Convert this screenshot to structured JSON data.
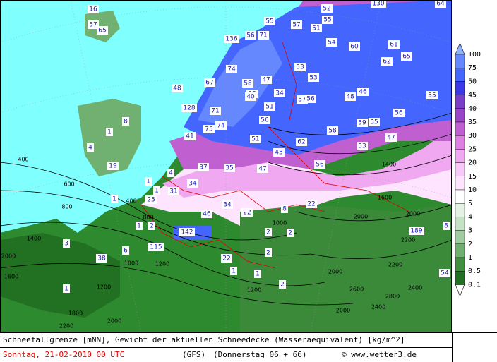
{
  "map": {
    "snow_labels": [
      16,
      57,
      65,
      130,
      64,
      52,
      55,
      57,
      51,
      55,
      56,
      71,
      136,
      54,
      60,
      61,
      62,
      65,
      74,
      53,
      53,
      48,
      67,
      58,
      47,
      38,
      34,
      57,
      56,
      48,
      46,
      55,
      56,
      128,
      71,
      40,
      51,
      56,
      58,
      59,
      55,
      47,
      75,
      74,
      41,
      51,
      62,
      53,
      45,
      56,
      37,
      35,
      47,
      8,
      1,
      4,
      19,
      1,
      1,
      4,
      31,
      34,
      25,
      46,
      34,
      22,
      8,
      22,
      1,
      1,
      2,
      142,
      115,
      3,
      38,
      6,
      22,
      2,
      2,
      2,
      1,
      1,
      2,
      1,
      189,
      8,
      54
    ],
    "contour_labels": [
      400,
      600,
      800,
      1400,
      2000,
      1600,
      1000,
      1200,
      1800,
      2000,
      2200,
      1200,
      400,
      800,
      1400,
      1600,
      2000,
      1000,
      2000,
      2200,
      2200,
      2400,
      2400,
      2600,
      2000,
      2800,
      1200,
      2000
    ]
  },
  "legend": {
    "values": [
      100,
      75,
      50,
      45,
      40,
      35,
      30,
      25,
      20,
      15,
      10,
      5,
      4,
      3,
      2,
      1,
      0.5,
      0.1
    ],
    "colors": [
      "#8cb4ff",
      "#6688ff",
      "#4466ff",
      "#3a3ae8",
      "#7a3ec8",
      "#9a44c8",
      "#c060d0",
      "#e080e0",
      "#f0a8f0",
      "#f8c8f8",
      "#ffe4ff",
      "#ffffff",
      "#e4f2e4",
      "#c4e2c4",
      "#a0cca0",
      "#70b070",
      "#409040",
      "#227022",
      "#ffffff"
    ]
  },
  "footer": {
    "line1": "Schneefallgrenze [mNN], Gewicht der aktuellen Schneedecke (Wasseraequivalent) [kg/m^2]",
    "date": "Sonntag, 21-02-2010  00 UTC",
    "model": "(GFS)",
    "forecast": "(Donnerstag 06 + 66)",
    "credit": "© www.wetter3.de"
  }
}
